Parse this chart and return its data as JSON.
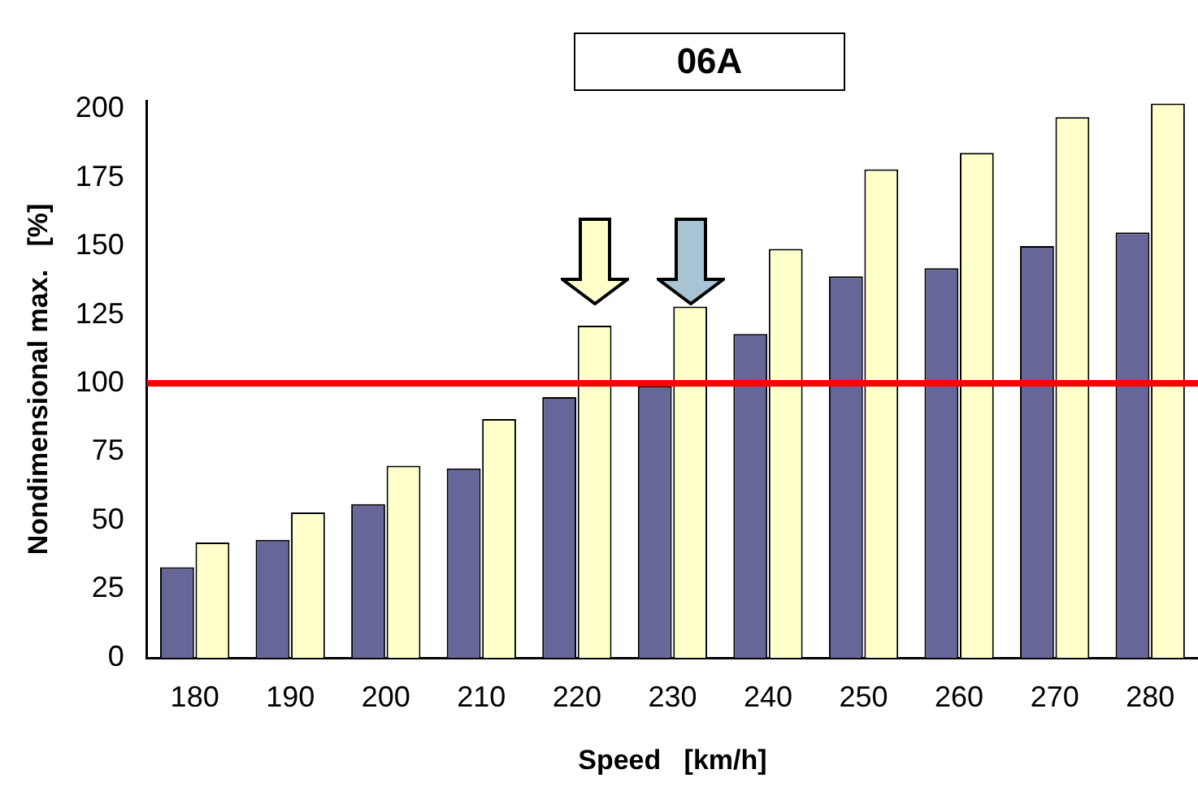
{
  "chart_data": {
    "type": "bar",
    "title": "06A",
    "xlabel": "Speed   [km/h]",
    "ylabel": "Nondimensional max.   [%]",
    "categories": [
      "180",
      "190",
      "200",
      "210",
      "220",
      "230",
      "240",
      "250",
      "260",
      "270",
      "280"
    ],
    "series": [
      {
        "color": "#666699",
        "values": [
          33,
          43,
          56,
          69,
          95,
          99,
          118,
          139,
          142,
          150,
          155
        ]
      },
      {
        "color": "#ffffcc",
        "values": [
          42,
          53,
          70,
          87,
          121,
          128,
          149,
          178,
          184,
          197,
          202
        ]
      }
    ],
    "ylim": [
      0,
      203
    ],
    "yticks": [
      0,
      25,
      50,
      75,
      100,
      125,
      150,
      175,
      200
    ],
    "ref_lines": [
      {
        "axis": "y",
        "value": 100,
        "color": "#ff0000"
      }
    ],
    "grid": false,
    "legend": false
  }
}
